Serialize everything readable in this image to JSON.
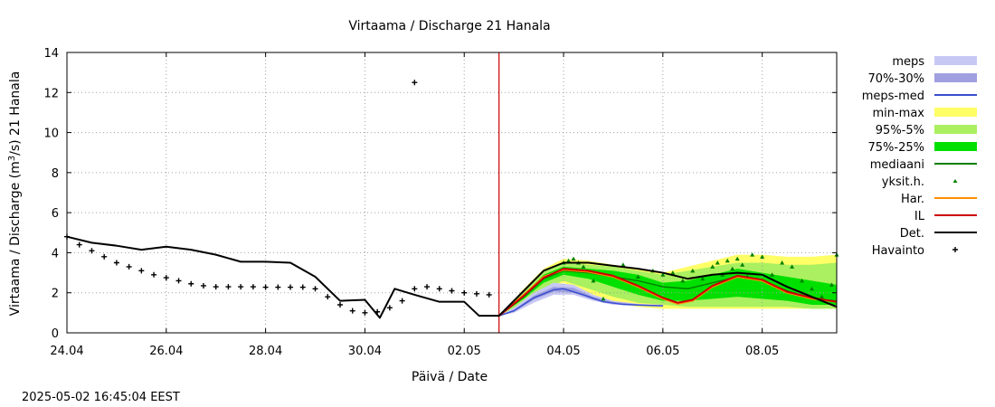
{
  "chart_data": {
    "type": "line",
    "title": "Virtaama / Discharge  21 Hanala",
    "xlabel": "Päivä / Date",
    "ylabel": "Virtaama / Discharge (m³/s)  21 Hanala",
    "ylabel_parts": [
      "Virtaama / Discharge (m",
      "3",
      "/s)  21 Hanala"
    ],
    "ylim": [
      0,
      14
    ],
    "xlim": [
      0,
      15.5
    ],
    "yticks": [
      0,
      2,
      4,
      6,
      8,
      10,
      12,
      14
    ],
    "xticks": [
      {
        "x": 0,
        "label": "24.04"
      },
      {
        "x": 2,
        "label": "26.04"
      },
      {
        "x": 4,
        "label": "28.04"
      },
      {
        "x": 6,
        "label": "30.04"
      },
      {
        "x": 8,
        "label": "02.05"
      },
      {
        "x": 10,
        "label": "04.05"
      },
      {
        "x": 12,
        "label": "06.05"
      },
      {
        "x": 14,
        "label": "08.05"
      }
    ],
    "x_unit_note": "x = days after 24.04",
    "grid": true,
    "legend_position": "right",
    "forecast_start_x": 8.7,
    "timestamp": "2025-05-02 16:45:04 EEST",
    "legend": [
      {
        "key": "meps",
        "label": "meps",
        "kind": "band",
        "color": "#c8c8f5"
      },
      {
        "key": "p7030",
        "label": "70%-30%",
        "kind": "band",
        "color": "#a0a0e0"
      },
      {
        "key": "meps_med",
        "label": "meps-med",
        "kind": "line",
        "color": "#3a4ecf"
      },
      {
        "key": "minmax",
        "label": "min-max",
        "kind": "band",
        "color": "#ffff66"
      },
      {
        "key": "p955",
        "label": "95%-5%",
        "kind": "band",
        "color": "#aaf060"
      },
      {
        "key": "p7525",
        "label": "75%-25%",
        "kind": "band",
        "color": "#00e000"
      },
      {
        "key": "mediaani",
        "label": "mediaani",
        "kind": "line",
        "color": "#008000"
      },
      {
        "key": "yksit",
        "label": "yksit.h.",
        "kind": "tri",
        "color": "#008000"
      },
      {
        "key": "har",
        "label": "Har.",
        "kind": "line",
        "color": "#ff8c00"
      },
      {
        "key": "il",
        "label": "IL",
        "kind": "line",
        "color": "#cc0000"
      },
      {
        "key": "det",
        "label": "Det.",
        "kind": "line",
        "color": "#000000"
      },
      {
        "key": "havainto",
        "label": "Havainto",
        "kind": "plus",
        "color": "#000000"
      }
    ],
    "bands": {
      "minmax": {
        "x": [
          8.7,
          9.2,
          9.6,
          10,
          10.5,
          11,
          11.5,
          12,
          12.5,
          13,
          13.5,
          14,
          14.5,
          15,
          15.5
        ],
        "low": [
          0.85,
          1.3,
          2.0,
          2.5,
          1.9,
          1.5,
          1.3,
          1.2,
          1.2,
          1.2,
          1.2,
          1.2,
          1.2,
          1.2,
          1.2
        ],
        "high": [
          0.85,
          2.2,
          3.2,
          3.7,
          3.6,
          3.4,
          3.2,
          3.0,
          3.3,
          3.6,
          3.9,
          3.9,
          3.8,
          3.8,
          3.9
        ]
      },
      "p955": {
        "x": [
          8.7,
          9.2,
          9.6,
          10,
          10.5,
          11,
          11.5,
          12,
          12.5,
          13,
          13.5,
          14,
          14.5,
          15,
          15.5
        ],
        "low": [
          0.85,
          1.5,
          2.2,
          2.6,
          2.2,
          1.8,
          1.5,
          1.4,
          1.3,
          1.3,
          1.3,
          1.3,
          1.3,
          1.2,
          1.2
        ],
        "high": [
          0.85,
          2.1,
          3.1,
          3.5,
          3.4,
          3.3,
          3.1,
          2.9,
          3.1,
          3.3,
          3.5,
          3.5,
          3.4,
          3.4,
          3.5
        ]
      },
      "p7525": {
        "x": [
          8.7,
          9.2,
          9.6,
          10,
          10.5,
          11,
          11.5,
          12,
          12.5,
          13,
          13.5,
          14,
          14.5,
          15,
          15.5
        ],
        "low": [
          0.85,
          1.7,
          2.5,
          2.9,
          2.7,
          2.3,
          1.9,
          1.6,
          1.6,
          1.7,
          1.8,
          1.7,
          1.6,
          1.4,
          1.4
        ],
        "high": [
          0.85,
          1.9,
          2.9,
          3.3,
          3.2,
          3.1,
          2.9,
          2.5,
          2.6,
          2.9,
          3.2,
          3.0,
          2.8,
          2.6,
          2.4
        ]
      },
      "meps": {
        "x": [
          8.7,
          9.0,
          9.4,
          9.8,
          10.2,
          10.6,
          11,
          11.5,
          12
        ],
        "low": [
          0.85,
          1.0,
          1.5,
          1.9,
          1.9,
          1.6,
          1.4,
          1.35,
          1.3
        ],
        "high": [
          0.85,
          1.25,
          2.0,
          2.5,
          2.4,
          1.9,
          1.6,
          1.45,
          1.4
        ]
      },
      "p7030": {
        "x": [
          8.7,
          9.0,
          9.4,
          9.8,
          10.2,
          10.6,
          11,
          11.5,
          12
        ],
        "low": [
          0.85,
          1.05,
          1.65,
          2.05,
          2.0,
          1.65,
          1.45,
          1.38,
          1.33
        ],
        "high": [
          0.85,
          1.15,
          1.85,
          2.3,
          2.25,
          1.8,
          1.55,
          1.42,
          1.37
        ]
      }
    },
    "lines": {
      "meps_med": {
        "x": [
          8.7,
          9.0,
          9.4,
          9.8,
          10.0,
          10.4,
          10.8,
          11.2,
          11.6,
          12.0
        ],
        "y": [
          0.85,
          1.1,
          1.75,
          2.15,
          2.2,
          1.9,
          1.55,
          1.42,
          1.38,
          1.35
        ]
      },
      "mediaani": {
        "x": [
          8.7,
          9.2,
          9.6,
          10,
          10.5,
          11,
          11.5,
          12,
          12.5,
          13,
          13.5,
          14,
          14.5,
          15,
          15.5
        ],
        "y": [
          0.85,
          1.8,
          2.7,
          3.1,
          3.0,
          2.8,
          2.6,
          2.3,
          2.2,
          2.5,
          2.8,
          2.6,
          2.1,
          1.7,
          1.6
        ]
      },
      "har": {
        "x": [
          8.7,
          9.2,
          9.6,
          10,
          10.5,
          11,
          11.5,
          12,
          12.3,
          12.6,
          13,
          13.5,
          14,
          14.5,
          15,
          15.5
        ],
        "y": [
          0.85,
          1.9,
          2.8,
          3.15,
          3.05,
          2.8,
          2.3,
          1.7,
          1.45,
          1.6,
          2.3,
          2.8,
          2.6,
          2.0,
          1.7,
          1.55
        ]
      },
      "il": {
        "x": [
          8.7,
          9.2,
          9.6,
          10,
          10.5,
          11,
          11.5,
          12,
          12.3,
          12.6,
          13,
          13.5,
          14,
          14.5,
          15,
          15.5
        ],
        "y": [
          0.85,
          1.85,
          2.75,
          3.2,
          3.1,
          2.85,
          2.35,
          1.75,
          1.5,
          1.65,
          2.35,
          2.85,
          2.65,
          2.05,
          1.75,
          1.55
        ]
      },
      "det": {
        "x": [
          0,
          0.5,
          1,
          1.5,
          2,
          2.5,
          3,
          3.5,
          4,
          4.5,
          5,
          5.5,
          6,
          6.3,
          6.6,
          7,
          7.5,
          8,
          8.3,
          8.7,
          9.2,
          9.6,
          10,
          10.5,
          11,
          11.5,
          12,
          12.5,
          13,
          13.5,
          14,
          14.5,
          15,
          15.5
        ],
        "y": [
          4.8,
          4.5,
          4.35,
          4.15,
          4.3,
          4.15,
          3.9,
          3.55,
          3.55,
          3.5,
          2.8,
          1.6,
          1.65,
          0.75,
          2.2,
          1.9,
          1.55,
          1.55,
          0.85,
          0.85,
          2.1,
          3.1,
          3.5,
          3.5,
          3.35,
          3.2,
          3.0,
          2.7,
          2.9,
          3.0,
          2.9,
          2.3,
          1.8,
          1.3
        ]
      }
    },
    "observations": {
      "x": [
        0,
        0.25,
        0.5,
        0.75,
        1,
        1.25,
        1.5,
        1.75,
        2,
        2.25,
        2.5,
        2.75,
        3,
        3.25,
        3.5,
        3.75,
        4,
        4.25,
        4.5,
        4.75,
        5,
        5.25,
        5.5,
        5.75,
        6,
        6.25,
        6.5,
        6.75,
        7,
        7.25,
        7.5,
        7.75,
        8,
        8.25,
        8.5,
        7.0
      ],
      "y": [
        4.8,
        4.4,
        4.1,
        3.8,
        3.5,
        3.3,
        3.1,
        2.9,
        2.75,
        2.6,
        2.45,
        2.35,
        2.3,
        2.3,
        2.3,
        2.3,
        2.28,
        2.28,
        2.28,
        2.28,
        2.2,
        1.8,
        1.4,
        1.1,
        1.0,
        1.05,
        1.25,
        1.6,
        2.2,
        2.3,
        2.2,
        2.1,
        2.0,
        1.95,
        1.9,
        12.5
      ]
    },
    "scenarios": {
      "x": [
        10,
        10.1,
        10.2,
        10.3,
        10.4,
        10.6,
        10.8,
        11.2,
        11.5,
        11.8,
        12.0,
        12.2,
        12.4,
        12.6,
        12.8,
        13.0,
        13.1,
        13.2,
        13.3,
        13.4,
        13.5,
        13.6,
        13.7,
        13.8,
        14.0,
        14.2,
        14.4,
        14.6,
        14.8,
        15.0,
        15.2,
        15.4,
        15.5
      ],
      "y": [
        3.5,
        3.6,
        3.7,
        3.5,
        3.3,
        2.6,
        1.7,
        3.4,
        2.8,
        3.1,
        2.9,
        3.0,
        2.6,
        3.1,
        2.7,
        3.3,
        3.5,
        2.9,
        3.6,
        3.2,
        3.7,
        3.4,
        2.8,
        3.9,
        3.8,
        2.9,
        3.5,
        3.3,
        2.6,
        2.2,
        1.8,
        2.4,
        3.9
      ]
    }
  }
}
